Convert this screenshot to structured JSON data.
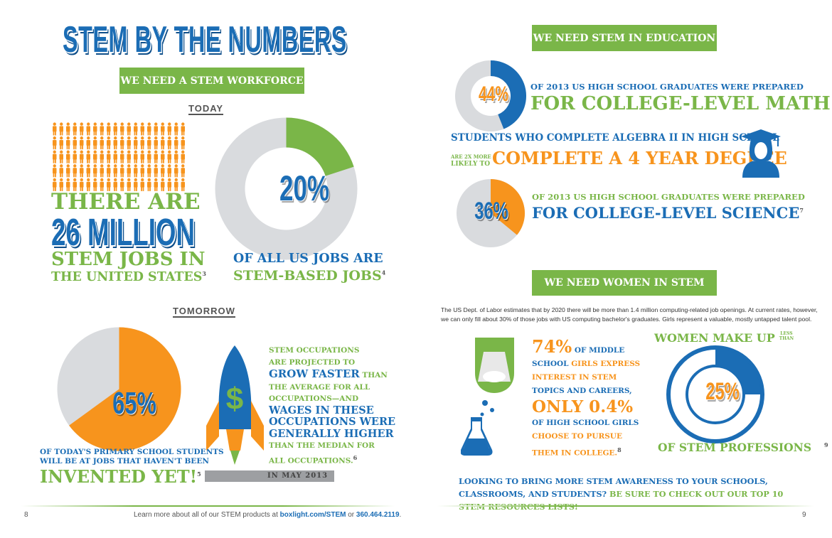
{
  "left": {
    "title": "STEM BY THE NUMBERS",
    "banner": "WE NEED A STEM WORKFORCE",
    "today": "TODAY",
    "jobs": {
      "line1": "THERE ARE",
      "line2": "26 MILLION",
      "line3": "STEM JOBS IN",
      "line4": "THE UNITED STATES",
      "note": "3"
    },
    "donut": {
      "value": 20,
      "label": "20%",
      "line1": "OF ALL US JOBS ARE",
      "line2": "STEM-BASED JOBS",
      "note": "4"
    },
    "tomorrow": "TOMORROW",
    "pie": {
      "value": 65,
      "label": "65%",
      "line1": "OF TODAY'S PRIMARY SCHOOL STUDENTS",
      "line2": "WILL BE AT JOBS THAT HAVEN'T BEEN",
      "line3": "INVENTED YET!",
      "note": "5"
    },
    "growth": {
      "t1": "STEM OCCUPATIONS",
      "t2": "ARE PROJECTED TO",
      "t3": "GROW FASTER",
      "t4": "THAN",
      "t5": "THE AVERAGE FOR ALL",
      "t6": "OCCUPATIONS—AND",
      "t7": "WAGES IN THESE",
      "t8": "OCCUPATIONS WERE",
      "t9": "GENERALLY HIGHER",
      "t10": "THAN THE MEDIAN FOR",
      "t11": "ALL OCCUPATIONS.",
      "note": "6",
      "date": "IN MAY 2013"
    },
    "page": "8",
    "footer": {
      "text": "Learn more about all of our STEM products at ",
      "link": "boxlight.com/STEM",
      "or": " or ",
      "phone": "360.464.2119",
      "end": "."
    }
  },
  "right": {
    "banner1": "WE NEED STEM IN EDUCATION",
    "math": {
      "value": 44,
      "label": "44%",
      "line1": "OF 2013 US HIGH SCHOOL GRADUATES WERE PREPARED",
      "line2": "FOR COLLEGE-LEVEL MATH"
    },
    "algebra": {
      "line1": "STUDENTS WHO COMPLETE ALGEBRA II IN HIGH SCHOOL",
      "small1": "ARE 2X MORE",
      "small2": "LIKELY TO",
      "big": "COMPLETE A 4 YEAR DEGREE"
    },
    "science": {
      "value": 36,
      "label": "36%",
      "line1": "OF 2013 US HIGH SCHOOL GRADUATES WERE PREPARED",
      "line2": "FOR COLLEGE-LEVEL SCIENCE",
      "note": "7"
    },
    "banner2": "WE NEED WOMEN IN STEM",
    "paragraph": "The US Dept. of Labor estimates that by 2020 there will be more than 1.4 million computing-related job openings. At current rates, however, we can only fill about 30% of those jobs with US computing bachelor's graduates. Girls represent a valuable, mostly untapped talent pool.",
    "girls": {
      "p1": "74%",
      "p2": "OF MIDDLE",
      "p3": "SCHOOL",
      "p4": "GIRLS EXPRESS",
      "p5": "INTEREST IN STEM",
      "p6": "TOPICS AND CAREERS,",
      "p7": "ONLY 0.4%",
      "p8": "OF HIGH SCHOOL GIRLS",
      "p9": "CHOOSE TO PURSUE",
      "p10": "THEM IN COLLEGE.",
      "note": "8"
    },
    "women": {
      "value": 25,
      "label": "25%",
      "line1": "WOMEN MAKE UP",
      "less": "LESS",
      "than": "THAN",
      "line2": "OF STEM PROFESSIONS",
      "note": "9"
    },
    "cta": {
      "blue": "LOOKING TO BRING MORE STEM AWARENESS TO YOUR SCHOOLS, CLASSROOMS, AND STUDENTS?",
      "green": " BE SURE TO CHECK OUT OUR TOP 10 STEM RESOURCES LISTS!"
    },
    "page": "9"
  },
  "colors": {
    "blue": "#1b6db5",
    "green": "#7ab648",
    "orange": "#f7941d",
    "gray": "#d9dbde"
  }
}
